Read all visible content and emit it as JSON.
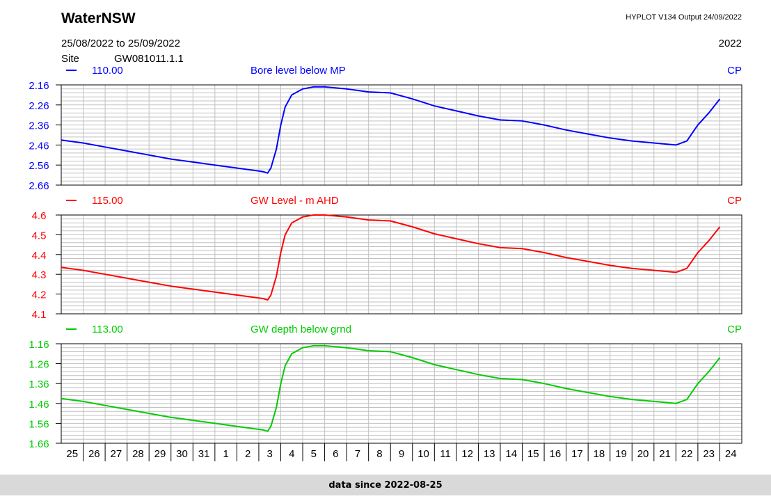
{
  "header": {
    "brand": "WaterNSW",
    "output_info": "HYPLOT V134  Output 24/09/2022",
    "date_range": "25/08/2022  to  25/09/2022",
    "year": "2022",
    "site_label": "Site",
    "site_id": "GW081011.1.1"
  },
  "footer": {
    "text": "data since 2022-08-25"
  },
  "chart_data": [
    {
      "type": "line",
      "color": "#0000ff",
      "code": "110.00",
      "title": "Bore level below MP",
      "right_label": "CP",
      "y_ticks": [
        "2.16",
        "2.26",
        "2.36",
        "2.46",
        "2.56",
        "2.66"
      ],
      "ylim": [
        2.66,
        2.16
      ],
      "y_inverted": true,
      "x_ticks": [
        "25",
        "26",
        "27",
        "28",
        "29",
        "30",
        "31",
        "1",
        "2",
        "3",
        "4",
        "5",
        "6",
        "7",
        "8",
        "9",
        "10",
        "11",
        "12",
        "13",
        "14",
        "15",
        "16",
        "17",
        "18",
        "19",
        "20",
        "21",
        "22",
        "23",
        "24"
      ],
      "xlim": [
        0,
        31
      ],
      "points": [
        [
          0,
          2.435
        ],
        [
          1,
          2.45
        ],
        [
          2,
          2.47
        ],
        [
          3,
          2.49
        ],
        [
          4,
          2.51
        ],
        [
          5,
          2.53
        ],
        [
          6,
          2.545
        ],
        [
          7,
          2.56
        ],
        [
          8,
          2.575
        ],
        [
          9,
          2.59
        ],
        [
          9.2,
          2.593
        ],
        [
          9.4,
          2.6
        ],
        [
          9.55,
          2.575
        ],
        [
          9.8,
          2.48
        ],
        [
          10.0,
          2.36
        ],
        [
          10.2,
          2.27
        ],
        [
          10.5,
          2.21
        ],
        [
          11,
          2.18
        ],
        [
          11.5,
          2.17
        ],
        [
          12,
          2.17
        ],
        [
          13,
          2.18
        ],
        [
          14,
          2.195
        ],
        [
          15,
          2.2
        ],
        [
          16,
          2.23
        ],
        [
          17,
          2.265
        ],
        [
          18,
          2.29
        ],
        [
          19,
          2.315
        ],
        [
          20,
          2.335
        ],
        [
          21,
          2.34
        ],
        [
          22,
          2.36
        ],
        [
          23,
          2.385
        ],
        [
          24,
          2.405
        ],
        [
          25,
          2.425
        ],
        [
          26,
          2.44
        ],
        [
          27,
          2.45
        ],
        [
          28,
          2.46
        ],
        [
          28.5,
          2.44
        ],
        [
          29,
          2.36
        ],
        [
          29.5,
          2.3
        ],
        [
          30,
          2.23
        ]
      ]
    },
    {
      "type": "line",
      "color": "#ff0000",
      "code": "115.00",
      "title": "GW Level - m AHD",
      "right_label": "CP",
      "y_ticks": [
        "4.6",
        "4.5",
        "4.4",
        "4.3",
        "4.2",
        "4.1"
      ],
      "ylim": [
        4.1,
        4.6
      ],
      "y_inverted": false,
      "x_ticks": [
        "25",
        "26",
        "27",
        "28",
        "29",
        "30",
        "31",
        "1",
        "2",
        "3",
        "4",
        "5",
        "6",
        "7",
        "8",
        "9",
        "10",
        "11",
        "12",
        "13",
        "14",
        "15",
        "16",
        "17",
        "18",
        "19",
        "20",
        "21",
        "22",
        "23",
        "24"
      ],
      "xlim": [
        0,
        31
      ],
      "points": [
        [
          0,
          4.335
        ],
        [
          1,
          4.32
        ],
        [
          2,
          4.3
        ],
        [
          3,
          4.28
        ],
        [
          4,
          4.26
        ],
        [
          5,
          4.24
        ],
        [
          6,
          4.225
        ],
        [
          7,
          4.21
        ],
        [
          8,
          4.195
        ],
        [
          9,
          4.18
        ],
        [
          9.2,
          4.177
        ],
        [
          9.4,
          4.17
        ],
        [
          9.55,
          4.195
        ],
        [
          9.8,
          4.29
        ],
        [
          10.0,
          4.41
        ],
        [
          10.2,
          4.5
        ],
        [
          10.5,
          4.56
        ],
        [
          11,
          4.59
        ],
        [
          11.5,
          4.6
        ],
        [
          12,
          4.6
        ],
        [
          13,
          4.59
        ],
        [
          14,
          4.575
        ],
        [
          15,
          4.57
        ],
        [
          16,
          4.54
        ],
        [
          17,
          4.505
        ],
        [
          18,
          4.48
        ],
        [
          19,
          4.455
        ],
        [
          20,
          4.435
        ],
        [
          21,
          4.43
        ],
        [
          22,
          4.41
        ],
        [
          23,
          4.385
        ],
        [
          24,
          4.365
        ],
        [
          25,
          4.345
        ],
        [
          26,
          4.33
        ],
        [
          27,
          4.32
        ],
        [
          28,
          4.31
        ],
        [
          28.5,
          4.33
        ],
        [
          29,
          4.41
        ],
        [
          29.5,
          4.47
        ],
        [
          30,
          4.54
        ]
      ]
    },
    {
      "type": "line",
      "color": "#00cc00",
      "code": "113.00",
      "title": "GW depth below grnd",
      "right_label": "CP",
      "y_ticks": [
        "1.16",
        "1.26",
        "1.36",
        "1.46",
        "1.56",
        "1.66"
      ],
      "ylim": [
        1.66,
        1.16
      ],
      "y_inverted": true,
      "x_ticks": [
        "25",
        "26",
        "27",
        "28",
        "29",
        "30",
        "31",
        "1",
        "2",
        "3",
        "4",
        "5",
        "6",
        "7",
        "8",
        "9",
        "10",
        "11",
        "12",
        "13",
        "14",
        "15",
        "16",
        "17",
        "18",
        "19",
        "20",
        "21",
        "22",
        "23",
        "24"
      ],
      "xlim": [
        0,
        31
      ],
      "points": [
        [
          0,
          1.435
        ],
        [
          1,
          1.45
        ],
        [
          2,
          1.47
        ],
        [
          3,
          1.49
        ],
        [
          4,
          1.51
        ],
        [
          5,
          1.53
        ],
        [
          6,
          1.545
        ],
        [
          7,
          1.56
        ],
        [
          8,
          1.575
        ],
        [
          9,
          1.59
        ],
        [
          9.2,
          1.593
        ],
        [
          9.4,
          1.6
        ],
        [
          9.55,
          1.575
        ],
        [
          9.8,
          1.48
        ],
        [
          10.0,
          1.36
        ],
        [
          10.2,
          1.27
        ],
        [
          10.5,
          1.21
        ],
        [
          11,
          1.18
        ],
        [
          11.5,
          1.17
        ],
        [
          12,
          1.17
        ],
        [
          13,
          1.18
        ],
        [
          14,
          1.195
        ],
        [
          15,
          1.2
        ],
        [
          16,
          1.23
        ],
        [
          17,
          1.265
        ],
        [
          18,
          1.29
        ],
        [
          19,
          1.315
        ],
        [
          20,
          1.335
        ],
        [
          21,
          1.34
        ],
        [
          22,
          1.36
        ],
        [
          23,
          1.385
        ],
        [
          24,
          1.405
        ],
        [
          25,
          1.425
        ],
        [
          26,
          1.44
        ],
        [
          27,
          1.45
        ],
        [
          28,
          1.46
        ],
        [
          28.5,
          1.44
        ],
        [
          29,
          1.36
        ],
        [
          29.5,
          1.3
        ],
        [
          30,
          1.23
        ]
      ]
    }
  ]
}
